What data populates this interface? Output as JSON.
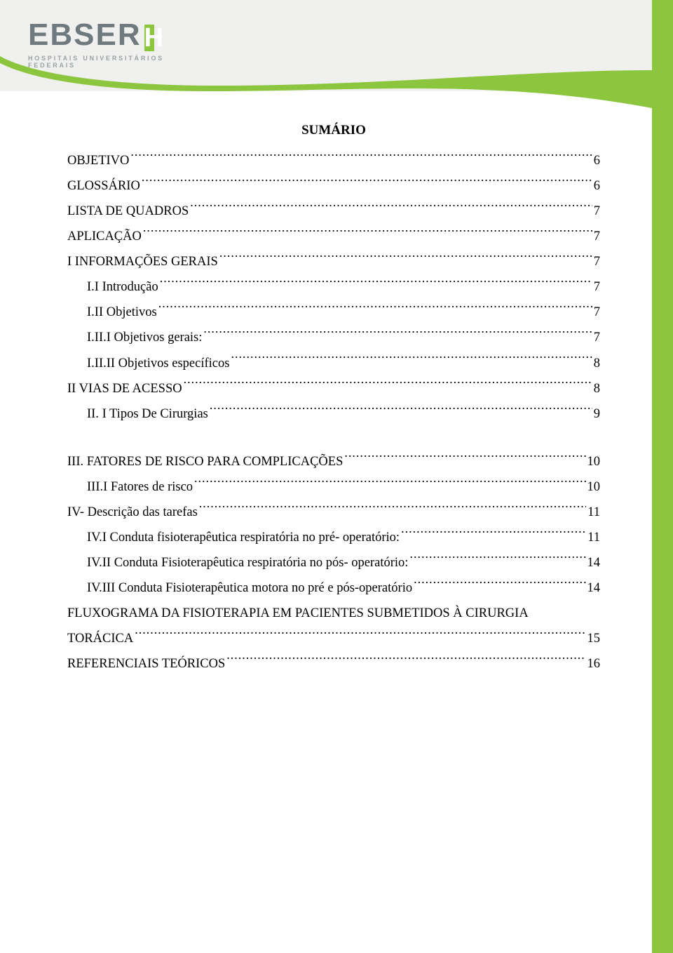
{
  "logo": {
    "main": "EBSER",
    "accent_color": "#8cc63f",
    "sub": "HOSPITAIS UNIVERSITÁRIOS FEDERAIS"
  },
  "title": "SUMÁRIO",
  "toc": [
    {
      "label": "OBJETIVO",
      "page": "6",
      "indent": 0
    },
    {
      "label": "GLOSSÁRIO",
      "page": "6",
      "indent": 0
    },
    {
      "label": "LISTA DE QUADROS",
      "page": "7",
      "indent": 0
    },
    {
      "label": "APLICAÇÃO",
      "page": "7",
      "indent": 0
    },
    {
      "label": "I INFORMAÇÕES GERAIS",
      "page": "7",
      "indent": 0
    },
    {
      "label": "I.I Introdução",
      "page": "7",
      "indent": 1
    },
    {
      "label": "I.II Objetivos",
      "page": "7",
      "indent": 1
    },
    {
      "label": "I.II.I Objetivos gerais:",
      "page": "7",
      "indent": 1
    },
    {
      "label": "I.II.II Objetivos específicos",
      "page": "8",
      "indent": 1
    },
    {
      "label": "II VIAS DE ACESSO",
      "page": "8",
      "indent": 0
    },
    {
      "label": "II. I Tipos De Cirurgias",
      "page": "9",
      "indent": 1
    }
  ],
  "toc2": [
    {
      "label": "III. FATORES DE RISCO PARA COMPLICAÇÕES",
      "page": "10",
      "indent": 0
    },
    {
      "label": "III.I Fatores de risco",
      "page": "10",
      "indent": 1
    },
    {
      "label": "IV- Descrição das tarefas",
      "page": "11",
      "indent": 0
    },
    {
      "label": "IV.I Conduta fisioterapêutica respiratória no pré- operatório:",
      "page": "11",
      "indent": 1
    },
    {
      "label": "IV.II Conduta Fisioterapêutica respiratória no pós- operatório:",
      "page": "14",
      "indent": 1
    },
    {
      "label": "IV.III Conduta Fisioterapêutica motora no pré e pós-operatório",
      "page": "14",
      "indent": 1
    }
  ],
  "toc_multiline": {
    "line1": "FLUXOGRAMA DA FISIOTERAPIA EM PACIENTES SUBMETIDOS À CIRURGIA",
    "line2": "TORÁCICA",
    "page": "15"
  },
  "toc3": [
    {
      "label": "REFERENCIAIS TEÓRICOS",
      "page": "16",
      "indent": 0
    }
  ],
  "colors": {
    "green": "#8cc63f",
    "banner_bg": "#f0f0ef",
    "page_bg": "#ffffff",
    "logo_gray": "#6f7a7f",
    "logo_sub_gray": "#9aa2a6"
  }
}
